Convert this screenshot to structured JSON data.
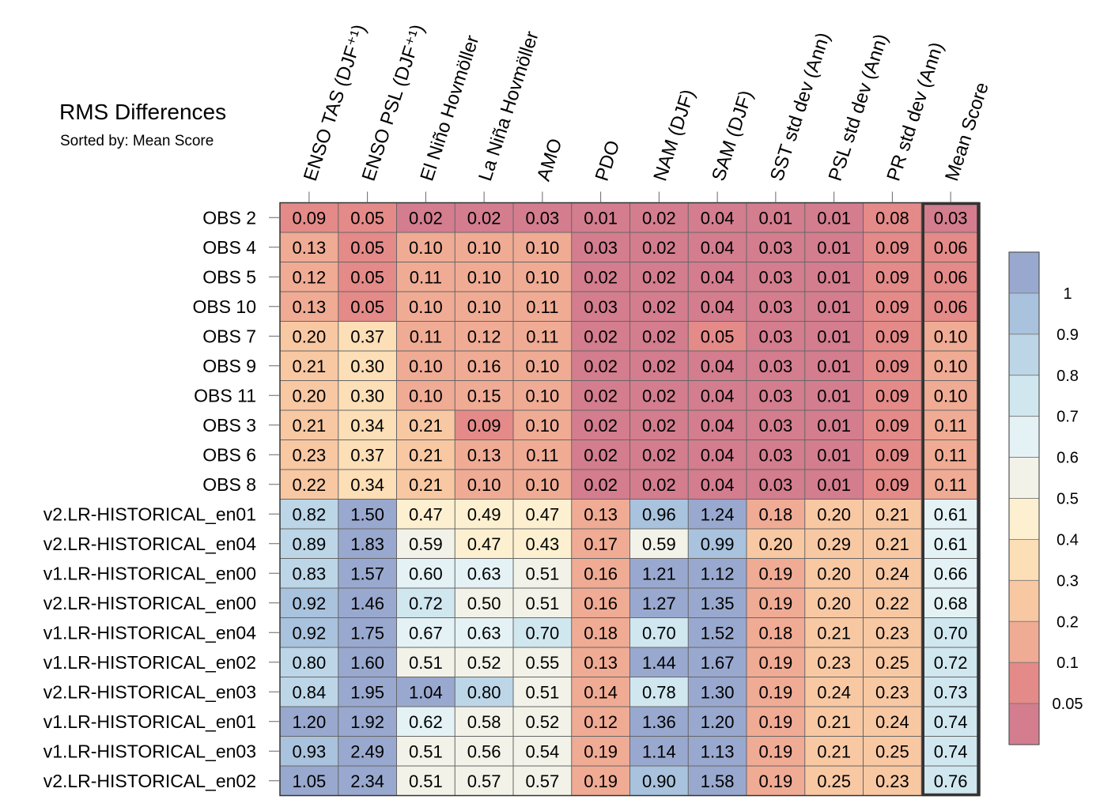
{
  "title": "RMS Differences",
  "subtitle": "Sorted by: Mean Score",
  "chart_data": {
    "type": "heatmap",
    "columns": [
      "ENSO TAS (DJF⁺¹)",
      "ENSO PSL (DJF⁺¹)",
      "El Niño Hovmöller",
      "La Niña Hovmöller",
      "AMO",
      "PDO",
      "NAM (DJF)",
      "SAM (DJF)",
      "SST std dev (Ann)",
      "PSL std dev (Ann)",
      "PR std dev (Ann)",
      "Mean Score"
    ],
    "rows": [
      "OBS 2",
      "OBS 4",
      "OBS 5",
      "OBS 10",
      "OBS 7",
      "OBS 9",
      "OBS 11",
      "OBS 3",
      "OBS 6",
      "OBS 8",
      "v2.LR-HISTORICAL_en01",
      "v2.LR-HISTORICAL_en04",
      "v1.LR-HISTORICAL_en00",
      "v2.LR-HISTORICAL_en00",
      "v1.LR-HISTORICAL_en04",
      "v1.LR-HISTORICAL_en02",
      "v2.LR-HISTORICAL_en03",
      "v1.LR-HISTORICAL_en01",
      "v1.LR-HISTORICAL_en03",
      "v2.LR-HISTORICAL_en02"
    ],
    "values": [
      [
        "0.09",
        "0.05",
        "0.02",
        "0.02",
        "0.03",
        "0.01",
        "0.02",
        "0.04",
        "0.01",
        "0.01",
        "0.08",
        "0.03"
      ],
      [
        "0.13",
        "0.05",
        "0.10",
        "0.10",
        "0.10",
        "0.03",
        "0.02",
        "0.04",
        "0.03",
        "0.01",
        "0.09",
        "0.06"
      ],
      [
        "0.12",
        "0.05",
        "0.11",
        "0.10",
        "0.10",
        "0.02",
        "0.02",
        "0.04",
        "0.03",
        "0.01",
        "0.09",
        "0.06"
      ],
      [
        "0.13",
        "0.05",
        "0.10",
        "0.10",
        "0.11",
        "0.03",
        "0.02",
        "0.04",
        "0.03",
        "0.01",
        "0.09",
        "0.06"
      ],
      [
        "0.20",
        "0.37",
        "0.11",
        "0.12",
        "0.11",
        "0.02",
        "0.02",
        "0.05",
        "0.03",
        "0.01",
        "0.09",
        "0.10"
      ],
      [
        "0.21",
        "0.30",
        "0.10",
        "0.16",
        "0.10",
        "0.02",
        "0.02",
        "0.04",
        "0.03",
        "0.01",
        "0.09",
        "0.10"
      ],
      [
        "0.20",
        "0.30",
        "0.10",
        "0.15",
        "0.10",
        "0.02",
        "0.02",
        "0.04",
        "0.03",
        "0.01",
        "0.09",
        "0.10"
      ],
      [
        "0.21",
        "0.34",
        "0.21",
        "0.09",
        "0.10",
        "0.02",
        "0.02",
        "0.04",
        "0.03",
        "0.01",
        "0.09",
        "0.11"
      ],
      [
        "0.23",
        "0.37",
        "0.21",
        "0.13",
        "0.11",
        "0.02",
        "0.02",
        "0.04",
        "0.03",
        "0.01",
        "0.09",
        "0.11"
      ],
      [
        "0.22",
        "0.34",
        "0.21",
        "0.10",
        "0.10",
        "0.02",
        "0.02",
        "0.04",
        "0.03",
        "0.01",
        "0.09",
        "0.11"
      ],
      [
        "0.82",
        "1.50",
        "0.47",
        "0.49",
        "0.47",
        "0.13",
        "0.96",
        "1.24",
        "0.18",
        "0.20",
        "0.21",
        "0.61"
      ],
      [
        "0.89",
        "1.83",
        "0.59",
        "0.47",
        "0.43",
        "0.17",
        "0.59",
        "0.99",
        "0.20",
        "0.29",
        "0.21",
        "0.61"
      ],
      [
        "0.83",
        "1.57",
        "0.60",
        "0.63",
        "0.51",
        "0.16",
        "1.21",
        "1.12",
        "0.19",
        "0.20",
        "0.24",
        "0.66"
      ],
      [
        "0.92",
        "1.46",
        "0.72",
        "0.50",
        "0.51",
        "0.16",
        "1.27",
        "1.35",
        "0.19",
        "0.20",
        "0.22",
        "0.68"
      ],
      [
        "0.92",
        "1.75",
        "0.67",
        "0.63",
        "0.70",
        "0.18",
        "0.70",
        "1.52",
        "0.18",
        "0.21",
        "0.23",
        "0.70"
      ],
      [
        "0.80",
        "1.60",
        "0.51",
        "0.52",
        "0.55",
        "0.13",
        "1.44",
        "1.67",
        "0.19",
        "0.23",
        "0.25",
        "0.72"
      ],
      [
        "0.84",
        "1.95",
        "1.04",
        "0.80",
        "0.51",
        "0.14",
        "0.78",
        "1.30",
        "0.19",
        "0.24",
        "0.23",
        "0.73"
      ],
      [
        "1.20",
        "1.92",
        "0.62",
        "0.58",
        "0.52",
        "0.12",
        "1.36",
        "1.20",
        "0.19",
        "0.21",
        "0.24",
        "0.74"
      ],
      [
        "0.93",
        "2.49",
        "0.51",
        "0.56",
        "0.54",
        "0.19",
        "1.14",
        "1.13",
        "0.19",
        "0.21",
        "0.25",
        "0.74"
      ],
      [
        "1.05",
        "2.34",
        "0.51",
        "0.57",
        "0.57",
        "0.19",
        "0.90",
        "1.58",
        "0.19",
        "0.25",
        "0.23",
        "0.76"
      ]
    ],
    "colorbar": {
      "tick_labels": [
        "1",
        "0.9",
        "0.8",
        "0.7",
        "0.6",
        "0.5",
        "0.4",
        "0.3",
        "0.2",
        "0.1",
        "0.05"
      ],
      "bins": [
        {
          "min": 1.0,
          "color": "#99A8CE"
        },
        {
          "min": 0.9,
          "color": "#A9C2DD"
        },
        {
          "min": 0.8,
          "color": "#BCD6E8"
        },
        {
          "min": 0.7,
          "color": "#D0E7F0"
        },
        {
          "min": 0.6,
          "color": "#E4F2F5"
        },
        {
          "min": 0.5,
          "color": "#F2F2E8"
        },
        {
          "min": 0.4,
          "color": "#FDF0D0"
        },
        {
          "min": 0.3,
          "color": "#FCDEB7"
        },
        {
          "min": 0.2,
          "color": "#F8C8A3"
        },
        {
          "min": 0.1,
          "color": "#F0AB94"
        },
        {
          "min": 0.05,
          "color": "#E48A88"
        },
        {
          "min": 0.0,
          "color": "#D37D8F"
        }
      ]
    },
    "highlighted_column": "Mean Score"
  }
}
